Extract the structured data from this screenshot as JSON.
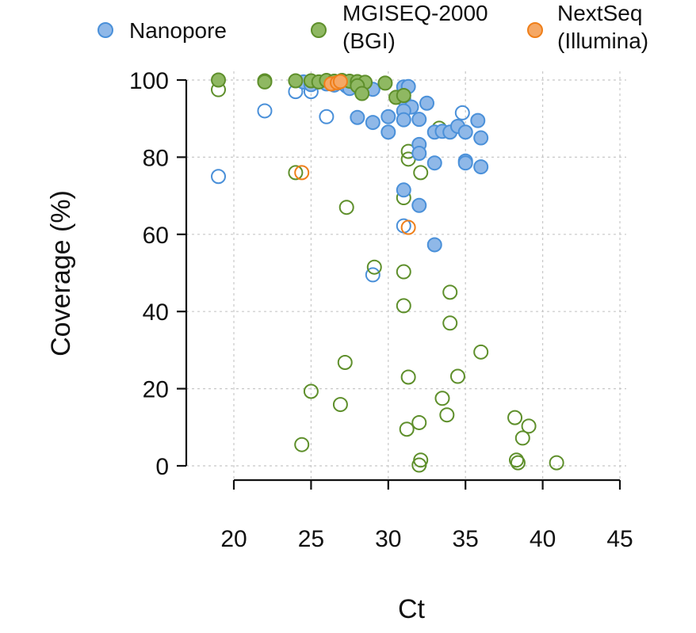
{
  "chart_data": {
    "type": "scatter",
    "title": "",
    "xlabel": "Ct",
    "ylabel": "Coverage (%)",
    "xlim": [
      17,
      45
    ],
    "ylim": [
      -4,
      101
    ],
    "xticks": [
      20,
      25,
      30,
      35,
      40,
      45
    ],
    "yticks": [
      0,
      20,
      40,
      60,
      80,
      100
    ],
    "grid": "dashed-horizontal-and-vertical",
    "legend_position": "top",
    "note": "filled markers and hollow markers are distinct series types within each platform",
    "series": [
      {
        "name": "Nanopore",
        "color": "#4a90d9",
        "fill": "#8fb8e8",
        "legend_line2": "",
        "points_filled": [
          [
            24.5,
            99.5
          ],
          [
            25.0,
            98.8
          ],
          [
            26.0,
            99.0
          ],
          [
            26.5,
            98.7
          ],
          [
            27.0,
            99.2
          ],
          [
            27.3,
            98.4
          ],
          [
            27.5,
            97.8
          ],
          [
            29.0,
            97.6
          ],
          [
            31.0,
            98.2
          ],
          [
            31.3,
            98.3
          ],
          [
            31.0,
            95.0
          ],
          [
            31.5,
            93.0
          ],
          [
            31.0,
            92.0
          ],
          [
            32.5,
            94.0
          ],
          [
            28.0,
            90.3
          ],
          [
            29.0,
            89.0
          ],
          [
            30.0,
            90.5
          ],
          [
            31.0,
            89.7
          ],
          [
            32.0,
            89.8
          ],
          [
            30.0,
            86.5
          ],
          [
            33.0,
            86.5
          ],
          [
            33.5,
            86.7
          ],
          [
            34.0,
            86.5
          ],
          [
            34.5,
            88.0
          ],
          [
            35.0,
            86.5
          ],
          [
            35.8,
            89.5
          ],
          [
            36.0,
            85.0
          ],
          [
            32.0,
            83.3
          ],
          [
            32.0,
            81.0
          ],
          [
            33.0,
            78.5
          ],
          [
            35.0,
            79.0
          ],
          [
            35.0,
            78.5
          ],
          [
            36.0,
            77.5
          ],
          [
            31.0,
            71.5
          ],
          [
            32.0,
            67.5
          ],
          [
            33.0,
            57.3
          ]
        ],
        "points_hollow": [
          [
            19.0,
            75.0
          ],
          [
            22.0,
            92.0
          ],
          [
            24.0,
            97.0
          ],
          [
            25.0,
            97.0
          ],
          [
            26.0,
            90.5
          ],
          [
            34.8,
            91.5
          ],
          [
            31.0,
            62.2
          ],
          [
            29.0,
            49.5
          ]
        ]
      },
      {
        "name": "MGISEQ-2000",
        "legend_line2": "(BGI)",
        "color": "#5e8f2b",
        "fill": "#8fb862",
        "points_filled": [
          [
            19.0,
            100.0
          ],
          [
            22.0,
            99.8
          ],
          [
            22.0,
            99.5
          ],
          [
            24.0,
            99.8
          ],
          [
            25.0,
            99.8
          ],
          [
            25.5,
            99.5
          ],
          [
            26.0,
            99.9
          ],
          [
            26.5,
            99.7
          ],
          [
            27.0,
            99.9
          ],
          [
            27.5,
            99.7
          ],
          [
            28.0,
            99.6
          ],
          [
            28.5,
            99.4
          ],
          [
            29.8,
            99.2
          ],
          [
            28.0,
            98.5
          ],
          [
            30.5,
            95.5
          ],
          [
            31.0,
            96.0
          ],
          [
            28.3,
            96.5
          ]
        ],
        "points_hollow": [
          [
            19.0,
            97.5
          ],
          [
            24.0,
            76.0
          ],
          [
            31.3,
            81.5
          ],
          [
            31.3,
            79.5
          ],
          [
            32.1,
            76.0
          ],
          [
            27.3,
            67.0
          ],
          [
            31.0,
            69.5
          ],
          [
            33.3,
            87.5
          ],
          [
            29.1,
            51.5
          ],
          [
            31.0,
            50.3
          ],
          [
            31.0,
            41.5
          ],
          [
            34.0,
            45.0
          ],
          [
            34.0,
            37.0
          ],
          [
            36.0,
            29.5
          ],
          [
            27.2,
            26.8
          ],
          [
            31.3,
            23.0
          ],
          [
            34.5,
            23.2
          ],
          [
            25.0,
            19.3
          ],
          [
            33.5,
            17.5
          ],
          [
            26.9,
            15.9
          ],
          [
            33.8,
            13.2
          ],
          [
            38.2,
            12.5
          ],
          [
            32.0,
            11.2
          ],
          [
            39.1,
            10.3
          ],
          [
            31.2,
            9.5
          ],
          [
            38.7,
            7.2
          ],
          [
            24.4,
            5.5
          ],
          [
            32.1,
            1.5
          ],
          [
            32.0,
            0.2
          ],
          [
            38.3,
            1.5
          ],
          [
            38.4,
            0.8
          ],
          [
            40.9,
            0.8
          ]
        ]
      },
      {
        "name": "NextSeq",
        "legend_line2": "(Illumina)",
        "color": "#ef7f1a",
        "fill": "#f5a865",
        "points_filled": [
          [
            26.3,
            99.0
          ],
          [
            26.7,
            99.3
          ],
          [
            26.9,
            99.6
          ]
        ],
        "points_hollow": [
          [
            24.4,
            76.0
          ],
          [
            31.3,
            61.8
          ]
        ]
      }
    ]
  }
}
